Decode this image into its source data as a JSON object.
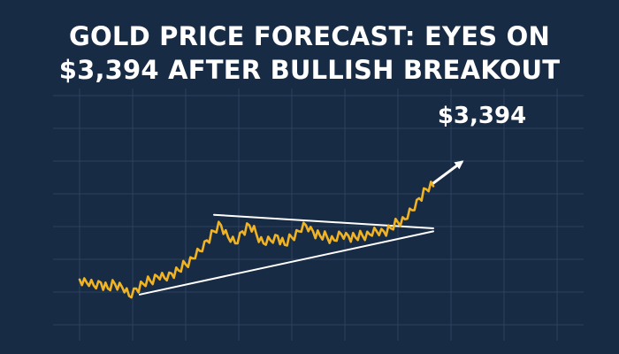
{
  "headline": {
    "line1": "GOLD PRICE FORECAST: EYES ON",
    "line2": "$3,394 AFTER BULLISH BREAKOUT"
  },
  "colors": {
    "background": "#182b45",
    "grid": "#2b4260",
    "price_line": "#f0b323",
    "trendlines": "#ffffff",
    "text": "#ffffff"
  },
  "chart_data": {
    "type": "line",
    "title": "",
    "xlabel": "",
    "ylabel": "",
    "grid": true,
    "legend": "none",
    "ylim": [
      0,
      100
    ],
    "series": [
      {
        "x": [
          0,
          2,
          4,
          6,
          8,
          10,
          12,
          14,
          16,
          18,
          20,
          22,
          24,
          26,
          28,
          30,
          32,
          34,
          36,
          38,
          40,
          42,
          44,
          46,
          48,
          50,
          52,
          54,
          56,
          58,
          60,
          62,
          64,
          66,
          68,
          70,
          72,
          74,
          76,
          78,
          80,
          82,
          84,
          86,
          88,
          90,
          92,
          94,
          96,
          98,
          100
        ],
        "values": [
          26,
          24,
          22,
          24,
          20,
          23,
          21,
          15,
          20,
          23,
          25,
          28,
          27,
          30,
          32,
          36,
          40,
          45,
          52,
          58,
          62,
          54,
          50,
          58,
          62,
          56,
          50,
          52,
          55,
          49,
          54,
          58,
          62,
          58,
          55,
          54,
          52,
          56,
          55,
          54,
          55,
          56,
          58,
          58,
          60,
          64,
          66,
          72,
          80,
          86,
          88
        ]
      }
    ],
    "trendlines": [
      {
        "name": "upper",
        "x": [
          38,
          100
        ],
        "y": [
          69,
          60
        ]
      },
      {
        "name": "lower",
        "x": [
          17,
          100
        ],
        "y": [
          16,
          58
        ]
      },
      {
        "name": "breakout-arrow",
        "x": [
          100,
          108
        ],
        "y": [
          90,
          104
        ]
      }
    ],
    "annotations": [
      {
        "text": "$3,394"
      }
    ]
  }
}
